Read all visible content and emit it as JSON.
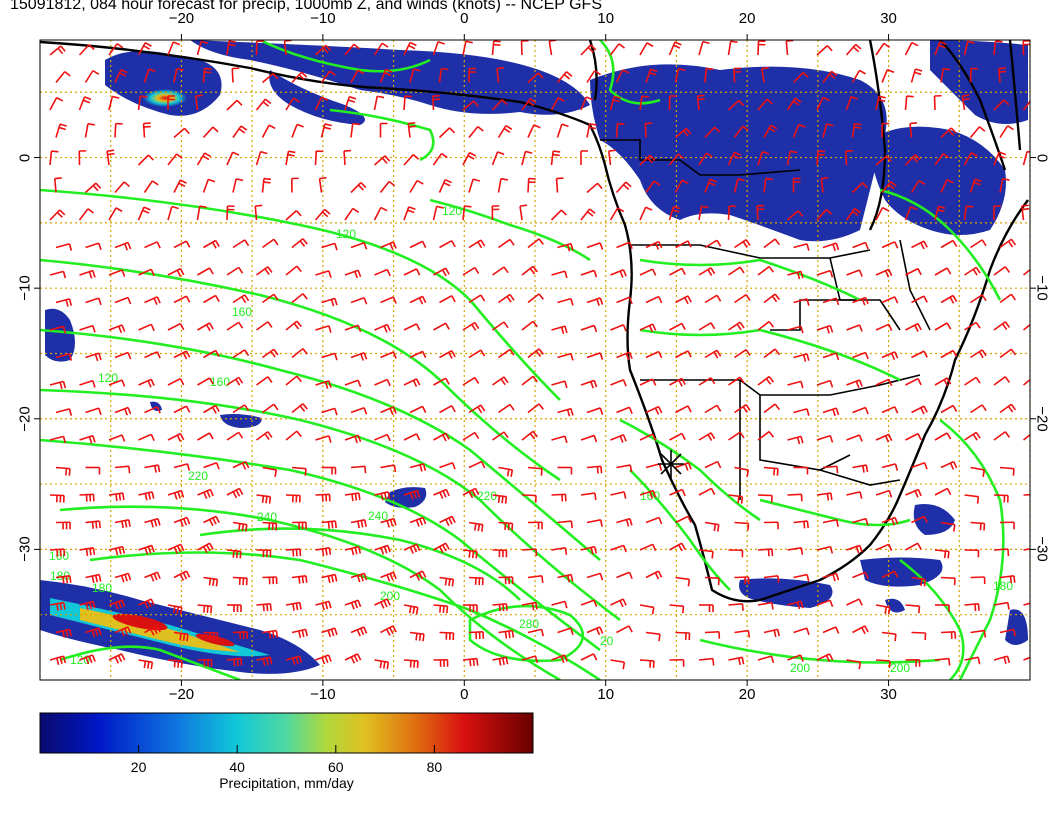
{
  "title": "15091812, 084 hour forecast for precip, 1000mb Z, and winds (knots) -- NCEP GFS",
  "map": {
    "lon_range": [
      -30,
      40
    ],
    "lat_range": [
      -40,
      9
    ],
    "lon_ticks": [
      {
        "value": -20,
        "label": "−20"
      },
      {
        "value": -10,
        "label": "−10"
      },
      {
        "value": 0,
        "label": "0"
      },
      {
        "value": 10,
        "label": "10"
      },
      {
        "value": 20,
        "label": "20"
      },
      {
        "value": 30,
        "label": "30"
      }
    ],
    "lat_ticks": [
      {
        "value": 0,
        "label": "0"
      },
      {
        "value": -10,
        "label": "−10"
      },
      {
        "value": -20,
        "label": "−20"
      },
      {
        "value": -30,
        "label": "−30"
      }
    ],
    "grid": true,
    "colors": {
      "contour": "#22ee22",
      "barb": "#ee1111",
      "coast": "#000000",
      "grid": "#d7a400",
      "precip_low": "#1f2fa8",
      "precip_high": "#d11818"
    },
    "contour_labels": [
      "120",
      "160",
      "180",
      "220",
      "240",
      "200",
      "280",
      "20"
    ],
    "station_marker_icon": "asterisk-icon"
  },
  "colorbar": {
    "min": 0,
    "max": 100,
    "ticks": [
      "20",
      "40",
      "60",
      "80"
    ],
    "label": "Precipitation, mm/day"
  }
}
